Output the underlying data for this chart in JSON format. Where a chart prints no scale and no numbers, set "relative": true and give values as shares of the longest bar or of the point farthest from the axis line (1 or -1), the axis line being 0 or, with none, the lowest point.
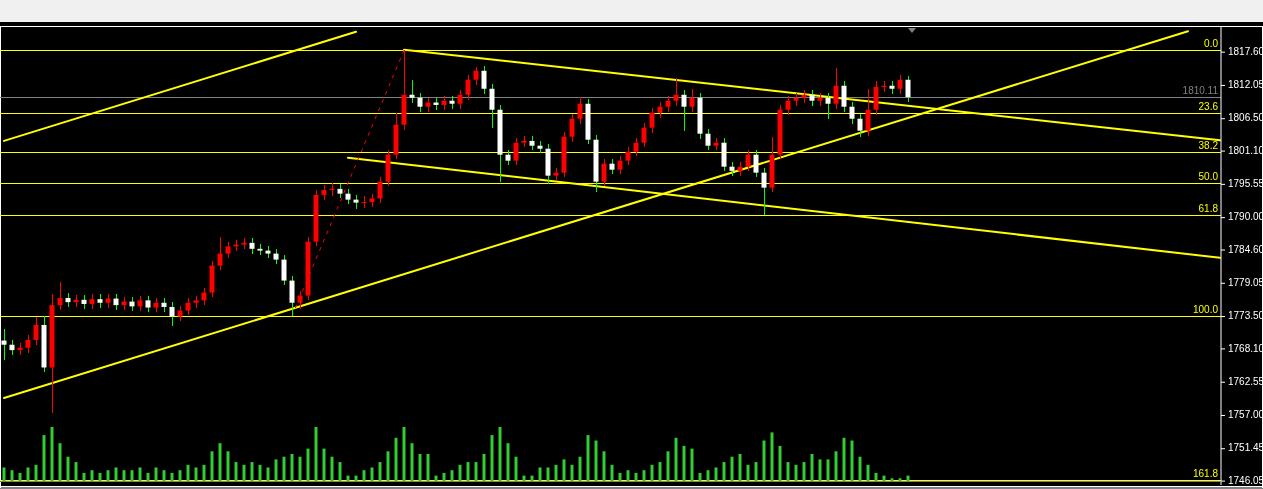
{
  "chart_data": [
    {
      "type": "candlestick",
      "categories": [
        null,
        null,
        null,
        null,
        null,
        null,
        null,
        null,
        null,
        null,
        null,
        null,
        null,
        null,
        null,
        null,
        null,
        null,
        null,
        null,
        null,
        null,
        null,
        null,
        null,
        null,
        null,
        null,
        null,
        null,
        null,
        null,
        null,
        null,
        null,
        null,
        null,
        null,
        null,
        null,
        null,
        null,
        null,
        null,
        null,
        null,
        null,
        null,
        null,
        null,
        null,
        null,
        null,
        null,
        null,
        null,
        null,
        null,
        null,
        null,
        null,
        null,
        null,
        null,
        null,
        null,
        null,
        null,
        null,
        null,
        null,
        null,
        null,
        null,
        null,
        null,
        null,
        null,
        null,
        null,
        null,
        null,
        null,
        null,
        null,
        null,
        null,
        null,
        null,
        null,
        null,
        null,
        null,
        null,
        null,
        null,
        null,
        null,
        null,
        null,
        null,
        null,
        null,
        null,
        null,
        null,
        null,
        null,
        null,
        null,
        null,
        null,
        null,
        null,
        null,
        null,
        null,
        null,
        null,
        null,
        null,
        null,
        null,
        null,
        null,
        null,
        null,
        null,
        null,
        null,
        null,
        null,
        null,
        null,
        null,
        null,
        null,
        null,
        null,
        null,
        null,
        null,
        null,
        null,
        null,
        null,
        null,
        null,
        null,
        null,
        null,
        null,
        null
      ],
      "ohlc": [
        [
          1769.5,
          1771.5,
          1766.2,
          1768.8
        ],
        [
          1768.8,
          1769.6,
          1767.1,
          1767.9
        ],
        [
          1767.9,
          1769.1,
          1767.1,
          1768.3
        ],
        [
          1768.3,
          1770.4,
          1767.5,
          1769.6
        ],
        [
          1769.6,
          1773.5,
          1768.8,
          1772.1
        ],
        [
          1772.1,
          1773.6,
          1764.2,
          1765.0
        ],
        [
          1765.0,
          1777.2,
          1757.4,
          1775.4
        ],
        [
          1775.4,
          1779.3,
          1774.6,
          1776.6
        ],
        [
          1776.6,
          1777.4,
          1775.1,
          1775.9
        ],
        [
          1775.9,
          1777.1,
          1775.1,
          1776.3
        ],
        [
          1776.3,
          1777.1,
          1774.8,
          1775.6
        ],
        [
          1775.6,
          1777.2,
          1774.8,
          1776.4
        ],
        [
          1776.4,
          1777.2,
          1775.0,
          1775.8
        ],
        [
          1775.8,
          1777.3,
          1775.0,
          1776.5
        ],
        [
          1776.5,
          1777.3,
          1774.6,
          1775.4
        ],
        [
          1775.4,
          1776.8,
          1774.6,
          1776.0
        ],
        [
          1776.0,
          1776.8,
          1774.4,
          1775.2
        ],
        [
          1775.2,
          1777.0,
          1774.4,
          1776.2
        ],
        [
          1776.2,
          1777.0,
          1774.2,
          1775.0
        ],
        [
          1775.0,
          1776.6,
          1774.2,
          1775.8
        ],
        [
          1775.8,
          1776.6,
          1774.3,
          1775.1
        ],
        [
          1775.1,
          1775.9,
          1772.0,
          1773.5
        ],
        [
          1773.5,
          1775.3,
          1772.7,
          1774.5
        ],
        [
          1774.5,
          1776.6,
          1773.7,
          1775.8
        ],
        [
          1775.8,
          1777.0,
          1775.0,
          1776.2
        ],
        [
          1776.2,
          1778.3,
          1775.4,
          1777.5
        ],
        [
          1777.5,
          1782.8,
          1776.7,
          1782.0
        ],
        [
          1782.0,
          1786.8,
          1781.2,
          1784.0
        ],
        [
          1784.0,
          1786.0,
          1783.2,
          1785.2
        ],
        [
          1785.2,
          1786.3,
          1784.4,
          1785.5
        ],
        [
          1785.5,
          1786.6,
          1784.7,
          1785.8
        ],
        [
          1785.8,
          1786.6,
          1784.0,
          1784.8
        ],
        [
          1784.8,
          1785.6,
          1783.7,
          1784.5
        ],
        [
          1784.5,
          1785.3,
          1783.2,
          1784.0
        ],
        [
          1784.0,
          1784.8,
          1782.2,
          1783.0
        ],
        [
          1783.0,
          1783.8,
          1778.7,
          1779.5
        ],
        [
          1779.5,
          1780.3,
          1773.6,
          1775.8
        ],
        [
          1775.8,
          1777.8,
          1774.8,
          1777.0
        ],
        [
          1777.0,
          1786.8,
          1776.2,
          1786.0
        ],
        [
          1786.0,
          1794.6,
          1785.2,
          1793.8
        ],
        [
          1793.8,
          1795.5,
          1793.0,
          1794.6
        ],
        [
          1794.6,
          1795.8,
          1793.6,
          1794.8
        ],
        [
          1794.8,
          1795.6,
          1793.2,
          1794.0
        ],
        [
          1794.0,
          1794.8,
          1792.2,
          1793.0
        ],
        [
          1793.0,
          1793.8,
          1791.5,
          1792.5
        ],
        [
          1792.5,
          1793.6,
          1791.6,
          1792.6
        ],
        [
          1792.6,
          1794.0,
          1791.8,
          1793.2
        ],
        [
          1793.2,
          1796.8,
          1792.4,
          1796.0
        ],
        [
          1796.0,
          1801.3,
          1795.2,
          1800.5
        ],
        [
          1800.5,
          1807.5,
          1799.7,
          1805.5
        ],
        [
          1805.5,
          1817.9,
          1804.7,
          1810.5
        ],
        [
          1810.5,
          1813.0,
          1809.2,
          1810.0
        ],
        [
          1810.0,
          1810.8,
          1807.7,
          1808.5
        ],
        [
          1808.5,
          1810.0,
          1807.7,
          1809.2
        ],
        [
          1809.2,
          1810.0,
          1808.0,
          1808.8
        ],
        [
          1808.8,
          1810.3,
          1808.0,
          1809.5
        ],
        [
          1809.5,
          1810.3,
          1808.2,
          1809.0
        ],
        [
          1809.0,
          1811.3,
          1808.2,
          1810.5
        ],
        [
          1810.5,
          1813.8,
          1809.7,
          1813.0
        ],
        [
          1813.0,
          1815.2,
          1812.2,
          1814.5
        ],
        [
          1814.5,
          1815.3,
          1810.7,
          1811.5
        ],
        [
          1811.5,
          1812.3,
          1805.0,
          1808.0
        ],
        [
          1808.0,
          1808.8,
          1795.9,
          1800.5
        ],
        [
          1800.5,
          1801.3,
          1798.7,
          1799.5
        ],
        [
          1799.5,
          1803.3,
          1798.7,
          1802.5
        ],
        [
          1802.5,
          1803.6,
          1801.7,
          1802.8
        ],
        [
          1802.8,
          1803.6,
          1801.2,
          1802.0
        ],
        [
          1802.0,
          1802.8,
          1800.7,
          1801.5
        ],
        [
          1801.5,
          1802.3,
          1795.6,
          1797.0
        ],
        [
          1797.0,
          1798.3,
          1796.2,
          1797.5
        ],
        [
          1797.5,
          1804.3,
          1796.7,
          1803.5
        ],
        [
          1803.5,
          1807.3,
          1802.7,
          1806.5
        ],
        [
          1806.5,
          1810.2,
          1805.7,
          1809.0
        ],
        [
          1809.0,
          1809.8,
          1802.2,
          1803.0
        ],
        [
          1803.0,
          1803.8,
          1794.2,
          1796.0
        ],
        [
          1796.0,
          1799.8,
          1795.2,
          1799.0
        ],
        [
          1799.0,
          1799.8,
          1797.2,
          1798.0
        ],
        [
          1798.0,
          1800.3,
          1797.2,
          1799.5
        ],
        [
          1799.5,
          1801.8,
          1798.7,
          1801.0
        ],
        [
          1801.0,
          1803.3,
          1800.2,
          1802.5
        ],
        [
          1802.5,
          1805.8,
          1801.7,
          1805.0
        ],
        [
          1805.0,
          1808.3,
          1804.2,
          1807.5
        ],
        [
          1807.5,
          1809.3,
          1806.7,
          1808.5
        ],
        [
          1808.5,
          1810.3,
          1807.7,
          1809.5
        ],
        [
          1809.5,
          1813.3,
          1808.7,
          1810.5
        ],
        [
          1810.5,
          1811.3,
          1804.5,
          1808.5
        ],
        [
          1808.5,
          1811.5,
          1807.7,
          1810.0
        ],
        [
          1810.0,
          1810.8,
          1803.2,
          1804.0
        ],
        [
          1804.0,
          1804.8,
          1801.2,
          1802.0
        ],
        [
          1802.0,
          1803.3,
          1801.2,
          1802.5
        ],
        [
          1802.5,
          1803.3,
          1797.7,
          1798.5
        ],
        [
          1798.5,
          1799.3,
          1797.0,
          1797.8
        ],
        [
          1797.8,
          1799.3,
          1797.0,
          1798.5
        ],
        [
          1798.5,
          1801.3,
          1797.7,
          1800.5
        ],
        [
          1800.5,
          1801.3,
          1796.7,
          1797.5
        ],
        [
          1797.5,
          1798.3,
          1790.4,
          1795.0
        ],
        [
          1795.0,
          1803.5,
          1794.2,
          1800.5
        ],
        [
          1800.5,
          1808.8,
          1799.7,
          1808.0
        ],
        [
          1808.0,
          1810.3,
          1807.2,
          1809.5
        ],
        [
          1809.5,
          1810.8,
          1808.7,
          1810.0
        ],
        [
          1810.0,
          1811.3,
          1809.2,
          1810.5
        ],
        [
          1810.5,
          1811.3,
          1808.7,
          1809.5
        ],
        [
          1809.5,
          1810.8,
          1808.7,
          1810.0
        ],
        [
          1810.0,
          1810.8,
          1806.5,
          1809.0
        ],
        [
          1809.0,
          1814.9,
          1808.2,
          1812.0
        ],
        [
          1812.0,
          1812.8,
          1807.7,
          1808.5
        ],
        [
          1808.5,
          1809.3,
          1805.7,
          1806.5
        ],
        [
          1806.5,
          1807.3,
          1803.5,
          1804.5
        ],
        [
          1804.5,
          1811.5,
          1803.7,
          1808.0
        ],
        [
          1808.0,
          1812.8,
          1807.2,
          1811.8
        ],
        [
          1811.8,
          1812.8,
          1811.0,
          1812.0
        ],
        [
          1812.0,
          1812.8,
          1810.7,
          1811.5
        ],
        [
          1811.5,
          1813.8,
          1810.7,
          1813.0
        ],
        [
          1813.0,
          1813.6,
          1809.3,
          1810.1
        ],
        null,
        null,
        null,
        null,
        null,
        null,
        null,
        null,
        null,
        null,
        null,
        null,
        null,
        null,
        null,
        null,
        null,
        null,
        null,
        null,
        null,
        null,
        null,
        null,
        null,
        null,
        null,
        null,
        null,
        null,
        null,
        null,
        null,
        null,
        null,
        null,
        null,
        null,
        null
      ],
      "series": [
        {
          "type": "line",
          "color": "#ffff00",
          "values": [
            1802.8,
            null,
            null,
            null,
            null,
            null,
            null,
            null,
            null,
            null,
            null,
            null,
            null,
            null,
            null,
            null,
            null,
            null,
            null,
            null,
            null,
            null,
            null,
            null,
            null,
            null,
            null,
            null,
            null,
            null,
            null,
            null,
            null,
            null,
            null,
            null,
            null,
            null,
            null,
            null,
            null,
            null,
            null,
            null,
            1821.0,
            null,
            null,
            null,
            null,
            null,
            null,
            null,
            null,
            null,
            null,
            null,
            null,
            null,
            null,
            null,
            null,
            null,
            null,
            null,
            null,
            null,
            null,
            null,
            null,
            null,
            null,
            null,
            null,
            null,
            null,
            null,
            null,
            null,
            null,
            null,
            null,
            null,
            null,
            null,
            null,
            null,
            null,
            null,
            null,
            null,
            null,
            null,
            null,
            null,
            null,
            null,
            null,
            null,
            null,
            null,
            null,
            null,
            null,
            null,
            null,
            null,
            null,
            null,
            null,
            null,
            null,
            null,
            null,
            null,
            null,
            null,
            null,
            null,
            null,
            null,
            null,
            null,
            null,
            null,
            null,
            null,
            null,
            null,
            null,
            null,
            null,
            null,
            null,
            null,
            null,
            null,
            null,
            null,
            null,
            null,
            null,
            null,
            null,
            null,
            null,
            null,
            null,
            null,
            null,
            null,
            null,
            null,
            null
          ]
        },
        {
          "type": "line",
          "color": "#ffff00",
          "values": [
            1759.9,
            null,
            null,
            null,
            null,
            null,
            null,
            null,
            null,
            null,
            null,
            null,
            null,
            null,
            null,
            null,
            null,
            null,
            null,
            null,
            null,
            null,
            null,
            null,
            null,
            null,
            null,
            null,
            null,
            null,
            null,
            null,
            null,
            null,
            null,
            null,
            null,
            null,
            null,
            null,
            null,
            null,
            null,
            null,
            null,
            null,
            null,
            null,
            null,
            null,
            null,
            null,
            null,
            null,
            null,
            null,
            null,
            null,
            null,
            null,
            null,
            null,
            null,
            null,
            null,
            null,
            null,
            null,
            null,
            null,
            null,
            null,
            null,
            null,
            null,
            null,
            null,
            null,
            null,
            null,
            null,
            null,
            null,
            null,
            null,
            null,
            null,
            null,
            null,
            null,
            null,
            null,
            null,
            null,
            null,
            null,
            null,
            null,
            null,
            null,
            null,
            null,
            null,
            null,
            null,
            null,
            null,
            null,
            null,
            null,
            null,
            null,
            null,
            null,
            null,
            null,
            null,
            null,
            null,
            null,
            null,
            null,
            null,
            null,
            null,
            null,
            null,
            null,
            null,
            null,
            null,
            null,
            null,
            null,
            null,
            null,
            null,
            null,
            null,
            null,
            null,
            null,
            null,
            null,
            null,
            null,
            null,
            null,
            1821.1,
            null,
            null,
            null,
            null
          ]
        },
        {
          "type": "line",
          "color": "#ffff00",
          "values": [
            null,
            null,
            null,
            null,
            null,
            null,
            null,
            null,
            null,
            null,
            null,
            null,
            null,
            null,
            null,
            null,
            null,
            null,
            null,
            null,
            null,
            null,
            null,
            null,
            null,
            null,
            null,
            null,
            null,
            null,
            null,
            null,
            null,
            null,
            null,
            null,
            null,
            null,
            null,
            null,
            null,
            null,
            null,
            null,
            null,
            null,
            null,
            null,
            null,
            null,
            1818.0,
            null,
            null,
            null,
            null,
            null,
            null,
            null,
            null,
            null,
            null,
            null,
            null,
            null,
            null,
            null,
            null,
            null,
            null,
            null,
            null,
            null,
            null,
            null,
            null,
            null,
            null,
            null,
            null,
            null,
            null,
            null,
            null,
            null,
            null,
            null,
            null,
            null,
            null,
            null,
            null,
            null,
            null,
            null,
            null,
            null,
            null,
            null,
            null,
            null,
            null,
            null,
            null,
            null,
            null,
            null,
            null,
            null,
            null,
            null,
            null,
            null,
            null,
            null,
            null,
            null,
            null,
            null,
            null,
            null,
            null,
            null,
            null,
            null,
            null,
            null,
            null,
            null,
            null,
            null,
            null,
            null,
            null,
            null,
            null,
            null,
            null,
            null,
            null,
            null,
            null,
            null,
            null,
            null,
            null,
            null,
            null,
            null,
            null,
            null,
            null,
            null,
            1802.9
          ]
        },
        {
          "type": "line",
          "color": "#ffff00",
          "values": [
            null,
            null,
            null,
            null,
            null,
            null,
            null,
            null,
            null,
            null,
            null,
            null,
            null,
            null,
            null,
            null,
            null,
            null,
            null,
            null,
            null,
            null,
            null,
            null,
            null,
            null,
            null,
            null,
            null,
            null,
            null,
            null,
            null,
            null,
            null,
            null,
            null,
            null,
            null,
            null,
            null,
            null,
            null,
            1800.0,
            null,
            null,
            null,
            null,
            null,
            null,
            null,
            null,
            null,
            null,
            null,
            null,
            null,
            null,
            null,
            null,
            null,
            null,
            null,
            null,
            null,
            null,
            null,
            null,
            null,
            null,
            null,
            null,
            null,
            null,
            null,
            null,
            null,
            null,
            null,
            null,
            null,
            null,
            null,
            null,
            null,
            null,
            null,
            null,
            null,
            null,
            null,
            null,
            null,
            null,
            null,
            null,
            null,
            null,
            null,
            null,
            null,
            null,
            null,
            null,
            null,
            null,
            null,
            null,
            null,
            null,
            null,
            null,
            null,
            null,
            null,
            null,
            null,
            null,
            null,
            null,
            null,
            null,
            null,
            null,
            null,
            null,
            null,
            null,
            null,
            null,
            null,
            null,
            null,
            null,
            null,
            null,
            null,
            null,
            null,
            null,
            null,
            null,
            null,
            null,
            null,
            null,
            null,
            null,
            null,
            null,
            null,
            null,
            1783.3
          ]
        },
        {
          "type": "line",
          "color": "#ff0000",
          "line_style": "dotted",
          "values": [
            null,
            null,
            null,
            null,
            null,
            null,
            null,
            null,
            null,
            null,
            null,
            null,
            null,
            null,
            null,
            null,
            null,
            null,
            null,
            null,
            null,
            null,
            null,
            null,
            null,
            null,
            null,
            null,
            null,
            null,
            null,
            null,
            null,
            null,
            null,
            null,
            1773.6,
            null,
            null,
            null,
            null,
            null,
            null,
            null,
            null,
            null,
            null,
            null,
            null,
            null,
            1817.9,
            null,
            null,
            null,
            null,
            null,
            null,
            null,
            null,
            null,
            null,
            null,
            null,
            null,
            null,
            null,
            null,
            null,
            null,
            null,
            null,
            null,
            null,
            null,
            null,
            null,
            null,
            null,
            null,
            null,
            null,
            null,
            null,
            null,
            null,
            null,
            null,
            null,
            null,
            null,
            null,
            null,
            null,
            null,
            null,
            null,
            null,
            null,
            null,
            null,
            null,
            null,
            null,
            null,
            null,
            null,
            null,
            null,
            null,
            null,
            null,
            null,
            null,
            null,
            null,
            null,
            null,
            null,
            null,
            null,
            null,
            null,
            null,
            null,
            null,
            null,
            null,
            null,
            null,
            null,
            null,
            null,
            null,
            null,
            null,
            null,
            null,
            null,
            null,
            null,
            null,
            null,
            null,
            null,
            null,
            null,
            null,
            null,
            null,
            null,
            null,
            null,
            null
          ]
        }
      ],
      "ylim": [
        1745.4,
        1821.8
      ],
      "yticks": [
        {
          "value": 1817.6,
          "label": "1817.60"
        },
        1812.05,
        {
          "value": 1806.5,
          "label": "1806.50"
        },
        {
          "value": 1801.1,
          "label": "1801.10"
        },
        1795.55,
        {
          "value": 1790,
          "label": "1790.00"
        },
        {
          "value": 1784.6,
          "label": "1784.60"
        },
        1779.05,
        {
          "value": 1773.5,
          "label": "1773.50"
        },
        {
          "value": 1768.1,
          "label": "1768.10"
        },
        1762.55,
        {
          "value": 1757,
          "label": "1757.00"
        },
        1751.45,
        1746.05
      ],
      "ref_lines": [
        {
          "axis": "y",
          "value": 1817.9,
          "color": "#ffff00"
        },
        {
          "axis": "y",
          "value": 1810.11,
          "label": "1810.11",
          "color": "#808080"
        },
        {
          "axis": "y",
          "value": 1807.45,
          "color": "#ffff00"
        },
        {
          "axis": "y",
          "value": 1800.95,
          "color": "#ffff00"
        },
        {
          "axis": "y",
          "value": 1795.75,
          "color": "#ffff00"
        },
        {
          "axis": "y",
          "value": 1790.5,
          "color": "#ffff00"
        },
        {
          "axis": "y",
          "value": 1773.6,
          "color": "#ffff00"
        },
        {
          "axis": "y",
          "value": 1746.2,
          "color": "#ffff00"
        }
      ],
      "annotations": [
        {
          "text": "0.0",
          "y": 1817.9
        },
        {
          "text": "23.6",
          "y": 1807.45
        },
        {
          "text": "38.2",
          "y": 1800.95
        },
        {
          "text": "50.0",
          "y": 1795.75
        },
        {
          "text": "61.8",
          "y": 1790.5
        },
        {
          "text": "100.0",
          "y": 1773.6
        },
        {
          "text": "161.8",
          "y": 1746.2
        }
      ],
      "tick_labels": "y"
    },
    {
      "type": "bar",
      "relative": true,
      "color": "#33cc33",
      "categories": [
        null,
        null,
        null,
        null,
        null,
        null,
        null,
        null,
        null,
        null,
        null,
        null,
        null,
        null,
        null,
        null,
        null,
        null,
        null,
        null,
        null,
        null,
        null,
        null,
        null,
        null,
        null,
        null,
        null,
        null,
        null,
        null,
        null,
        null,
        null,
        null,
        null,
        null,
        null,
        null,
        null,
        null,
        null,
        null,
        null,
        null,
        null,
        null,
        null,
        null,
        null,
        null,
        null,
        null,
        null,
        null,
        null,
        null,
        null,
        null,
        null,
        null,
        null,
        null,
        null,
        null,
        null,
        null,
        null,
        null,
        null,
        null,
        null,
        null,
        null,
        null,
        null,
        null,
        null,
        null,
        null,
        null,
        null,
        null,
        null,
        null,
        null,
        null,
        null,
        null,
        null,
        null,
        null,
        null,
        null,
        null,
        null,
        null,
        null,
        null,
        null,
        null,
        null,
        null,
        null,
        null,
        null,
        null,
        null,
        null,
        null,
        null,
        null,
        null
      ],
      "values": [
        0.25,
        0.2,
        0.15,
        0.25,
        0.3,
        0.85,
        1.0,
        0.7,
        0.45,
        0.35,
        0.15,
        0.2,
        0.15,
        0.2,
        0.25,
        0.2,
        0.2,
        0.25,
        0.15,
        0.25,
        0.2,
        0.15,
        0.2,
        0.3,
        0.25,
        0.3,
        0.55,
        0.7,
        0.55,
        0.35,
        0.3,
        0.35,
        0.3,
        0.25,
        0.4,
        0.45,
        0.5,
        0.45,
        0.6,
        1.0,
        0.6,
        0.45,
        0.35,
        0.1,
        0.1,
        0.2,
        0.25,
        0.35,
        0.55,
        0.8,
        1.0,
        0.7,
        0.5,
        0.5,
        0.1,
        0.15,
        0.2,
        0.3,
        0.35,
        0.35,
        0.5,
        0.85,
        1.0,
        0.7,
        0.45,
        0.1,
        0.1,
        0.25,
        0.25,
        0.3,
        0.4,
        0.3,
        0.45,
        0.85,
        0.75,
        0.55,
        0.3,
        0.15,
        0.2,
        0.15,
        0.2,
        0.3,
        0.35,
        0.55,
        0.8,
        0.65,
        0.6,
        0.15,
        0.2,
        0.25,
        0.35,
        0.45,
        0.5,
        0.3,
        0.35,
        0.75,
        0.9,
        0.65,
        0.35,
        0.3,
        0.35,
        0.5,
        0.4,
        0.4,
        0.55,
        0.8,
        0.75,
        0.45,
        0.3,
        0.15,
        0.1,
        0.05,
        0.05,
        0.1
      ]
    }
  ]
}
